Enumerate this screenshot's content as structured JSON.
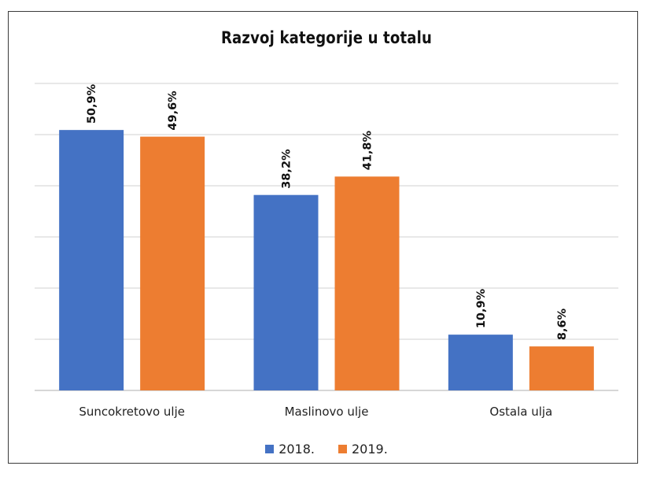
{
  "chart_data": {
    "type": "bar",
    "title": "Razvoj kategorije u totalu",
    "xlabel": "",
    "ylabel": "",
    "categories": [
      "Suncokretovo ulje",
      "Maslinovo ulje",
      "Ostala ulja"
    ],
    "series": [
      {
        "name": "2018.",
        "values": [
          50.9,
          38.2,
          10.9
        ],
        "labels": [
          "50,9%",
          "38,2%",
          "10,9%"
        ],
        "color": "#4472c4"
      },
      {
        "name": "2019.",
        "values": [
          49.6,
          41.8,
          8.6
        ],
        "labels": [
          "49,6%",
          "41,8%",
          "8,6%"
        ],
        "color": "#ed7d31"
      }
    ],
    "ylim": [
      0,
      60
    ],
    "grid": true,
    "legend_position": "bottom",
    "gridline_color": "#d9d9d9"
  }
}
